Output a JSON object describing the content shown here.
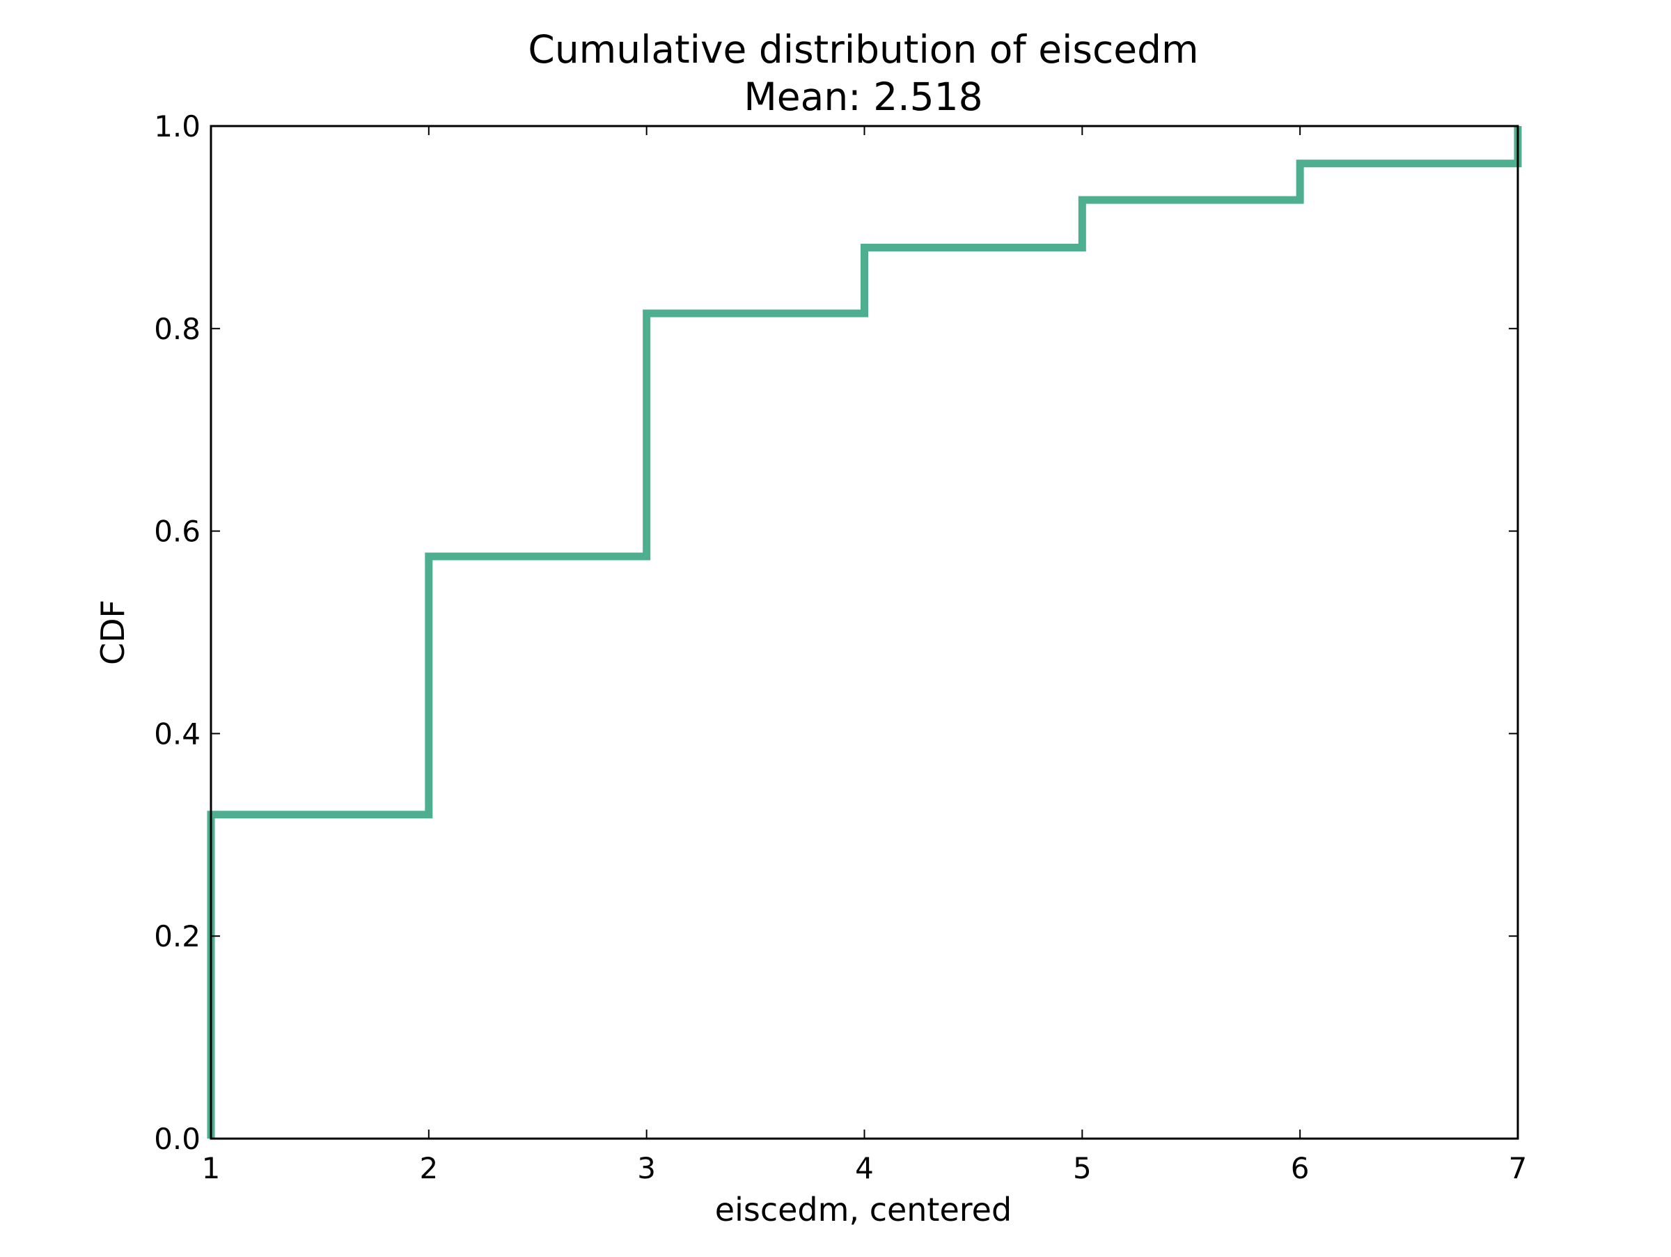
{
  "chart_data": {
    "type": "line",
    "step": true,
    "title": "Cumulative distribution of eiscedm",
    "subtitle": "Mean: 2.518",
    "xlabel": "eiscedm, centered",
    "ylabel": "CDF",
    "xlim": [
      1,
      7
    ],
    "ylim": [
      0.0,
      1.0
    ],
    "xticks": [
      "1",
      "2",
      "3",
      "4",
      "5",
      "6",
      "7"
    ],
    "yticks": [
      "0.0",
      "0.2",
      "0.4",
      "0.6",
      "0.8",
      "1.0"
    ],
    "grid": false,
    "line_color": "#4daf8f",
    "series": [
      {
        "x": [
          1,
          2,
          3,
          4,
          5,
          6,
          7
        ],
        "y": [
          0.32,
          0.575,
          0.815,
          0.88,
          0.927,
          0.963,
          1.0
        ]
      }
    ]
  }
}
